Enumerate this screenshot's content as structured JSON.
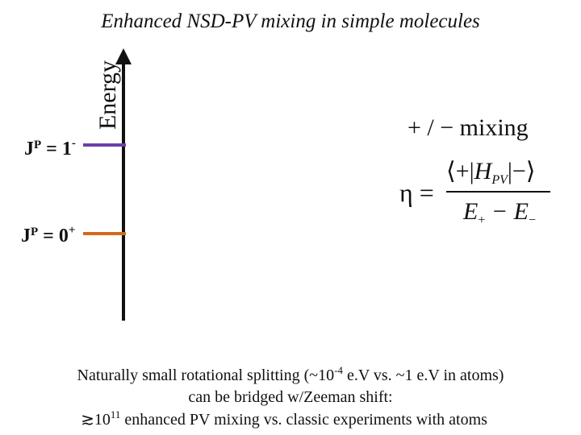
{
  "title": "Enhanced NSD-PV mixing in simple molecules",
  "axis_label": "Energy",
  "levels": [
    {
      "j": "J",
      "p": "P",
      "rest": " = 1",
      "parity": "-"
    },
    {
      "j": "J",
      "p": "P",
      "rest": " = 0",
      "parity": "+"
    }
  ],
  "equation": {
    "heading": "+ / − mixing",
    "lhs": "η =",
    "numerator": [
      "⟨+|",
      "H",
      "PV",
      "|−⟩"
    ],
    "denominator": [
      "E",
      "+",
      " − E",
      "−"
    ]
  },
  "caption": {
    "line1": [
      "Naturally small rotational splitting (~10",
      "-4",
      " e.V vs. ~1 e.V in atoms)"
    ],
    "line2": "can be bridged w/Zeeman shift:",
    "line3": [
      "≳10",
      "11",
      " enhanced PV mixing vs. classic experiments with atoms"
    ]
  }
}
